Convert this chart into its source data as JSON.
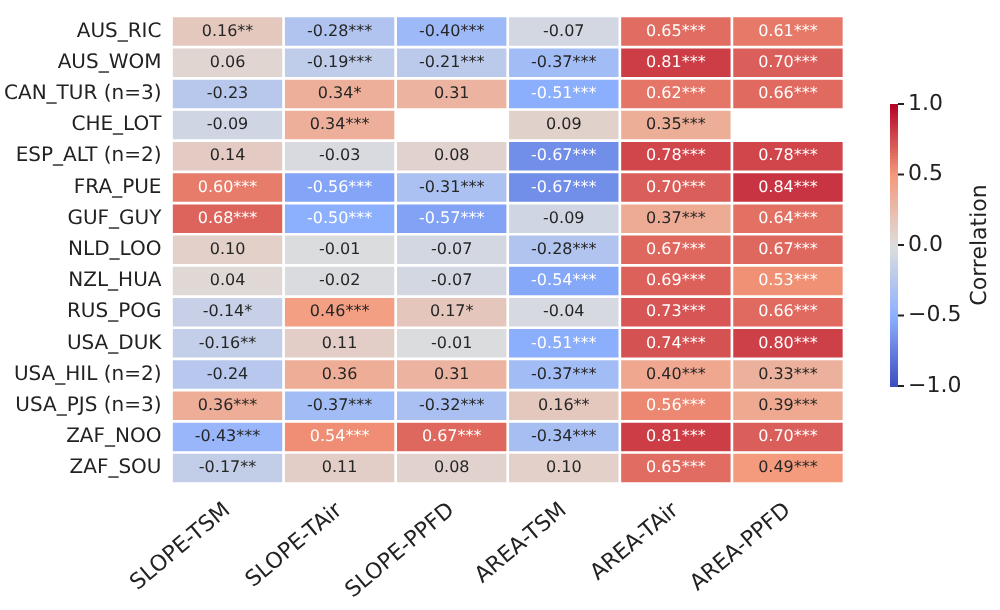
{
  "chart_data": {
    "type": "heatmap",
    "categories": [
      "SLOPE-TSM",
      "SLOPE-TAir",
      "SLOPE-PPFD",
      "AREA-TSM",
      "AREA-TAir",
      "AREA-PPFD"
    ],
    "y_categories": [
      "AUS_RIC",
      "AUS_WOM",
      "CAN_TUR (n=3)",
      "CHE_LOT",
      "ESP_ALT (n=2)",
      "FRA_PUE",
      "GUF_GUY",
      "NLD_LOO",
      "NZL_HUA",
      "RUS_POG",
      "USA_DUK",
      "USA_HIL (n=2)",
      "USA_PJS (n=3)",
      "ZAF_NOO",
      "ZAF_SOU"
    ],
    "cells": [
      [
        0.16,
        -0.28,
        -0.4,
        -0.07,
        0.65,
        0.61
      ],
      [
        0.06,
        -0.19,
        -0.21,
        -0.37,
        0.81,
        0.7
      ],
      [
        -0.23,
        0.34,
        0.31,
        -0.51,
        0.62,
        0.66
      ],
      [
        -0.09,
        0.34,
        null,
        0.09,
        0.35,
        null
      ],
      [
        0.14,
        -0.03,
        0.08,
        -0.67,
        0.78,
        0.78
      ],
      [
        0.6,
        -0.56,
        -0.31,
        -0.67,
        0.7,
        0.84
      ],
      [
        0.68,
        -0.5,
        -0.57,
        -0.09,
        0.37,
        0.64
      ],
      [
        0.1,
        -0.01,
        -0.07,
        -0.28,
        0.67,
        0.67
      ],
      [
        0.04,
        -0.02,
        -0.07,
        -0.54,
        0.69,
        0.53
      ],
      [
        -0.14,
        0.46,
        0.17,
        -0.04,
        0.73,
        0.66
      ],
      [
        -0.16,
        0.11,
        -0.01,
        -0.51,
        0.74,
        0.8
      ],
      [
        -0.24,
        0.36,
        0.31,
        -0.37,
        0.4,
        0.33
      ],
      [
        0.36,
        -0.37,
        -0.32,
        0.16,
        0.56,
        0.39
      ],
      [
        -0.43,
        0.54,
        0.67,
        -0.34,
        0.81,
        0.7
      ],
      [
        -0.17,
        0.11,
        0.08,
        0.1,
        0.65,
        0.49
      ]
    ],
    "cell_labels": [
      [
        "0.16**",
        "-0.28***",
        "-0.40***",
        "-0.07",
        "0.65***",
        "0.61***"
      ],
      [
        "0.06",
        "-0.19***",
        "-0.21***",
        "-0.37***",
        "0.81***",
        "0.70***"
      ],
      [
        "-0.23",
        "0.34*",
        "0.31",
        "-0.51***",
        "0.62***",
        "0.66***"
      ],
      [
        "-0.09",
        "0.34***",
        null,
        "0.09",
        "0.35***",
        null
      ],
      [
        "0.14",
        "-0.03",
        "0.08",
        "-0.67***",
        "0.78***",
        "0.78***"
      ],
      [
        "0.60***",
        "-0.56***",
        "-0.31***",
        "-0.67***",
        "0.70***",
        "0.84***"
      ],
      [
        "0.68***",
        "-0.50***",
        "-0.57***",
        "-0.09",
        "0.37***",
        "0.64***"
      ],
      [
        "0.10",
        "-0.01",
        "-0.07",
        "-0.28***",
        "0.67***",
        "0.67***"
      ],
      [
        "0.04",
        "-0.02",
        "-0.07",
        "-0.54***",
        "0.69***",
        "0.53***"
      ],
      [
        "-0.14*",
        "0.46***",
        "0.17*",
        "-0.04",
        "0.73***",
        "0.66***"
      ],
      [
        "-0.16**",
        "0.11",
        "-0.01",
        "-0.51***",
        "0.74***",
        "0.80***"
      ],
      [
        "-0.24",
        "0.36",
        "0.31",
        "-0.37***",
        "0.40***",
        "0.33***"
      ],
      [
        "0.36***",
        "-0.37***",
        "-0.32***",
        "0.16**",
        "0.56***",
        "0.39***"
      ],
      [
        "-0.43***",
        "0.54***",
        "0.67***",
        "-0.34***",
        "0.81***",
        "0.70***"
      ],
      [
        "-0.17**",
        "0.11",
        "0.08",
        "0.10",
        "0.65***",
        "0.49***"
      ]
    ],
    "clabel": "Correlation",
    "clim": [
      -1,
      1
    ],
    "cticks": [
      {
        "value": -1,
        "label": "−1.0"
      },
      {
        "value": -0.5,
        "label": "−0.5"
      },
      {
        "value": 0,
        "label": "0.0"
      },
      {
        "value": 0.5,
        "label": "0.5"
      },
      {
        "value": 1,
        "label": "1.0"
      }
    ]
  }
}
